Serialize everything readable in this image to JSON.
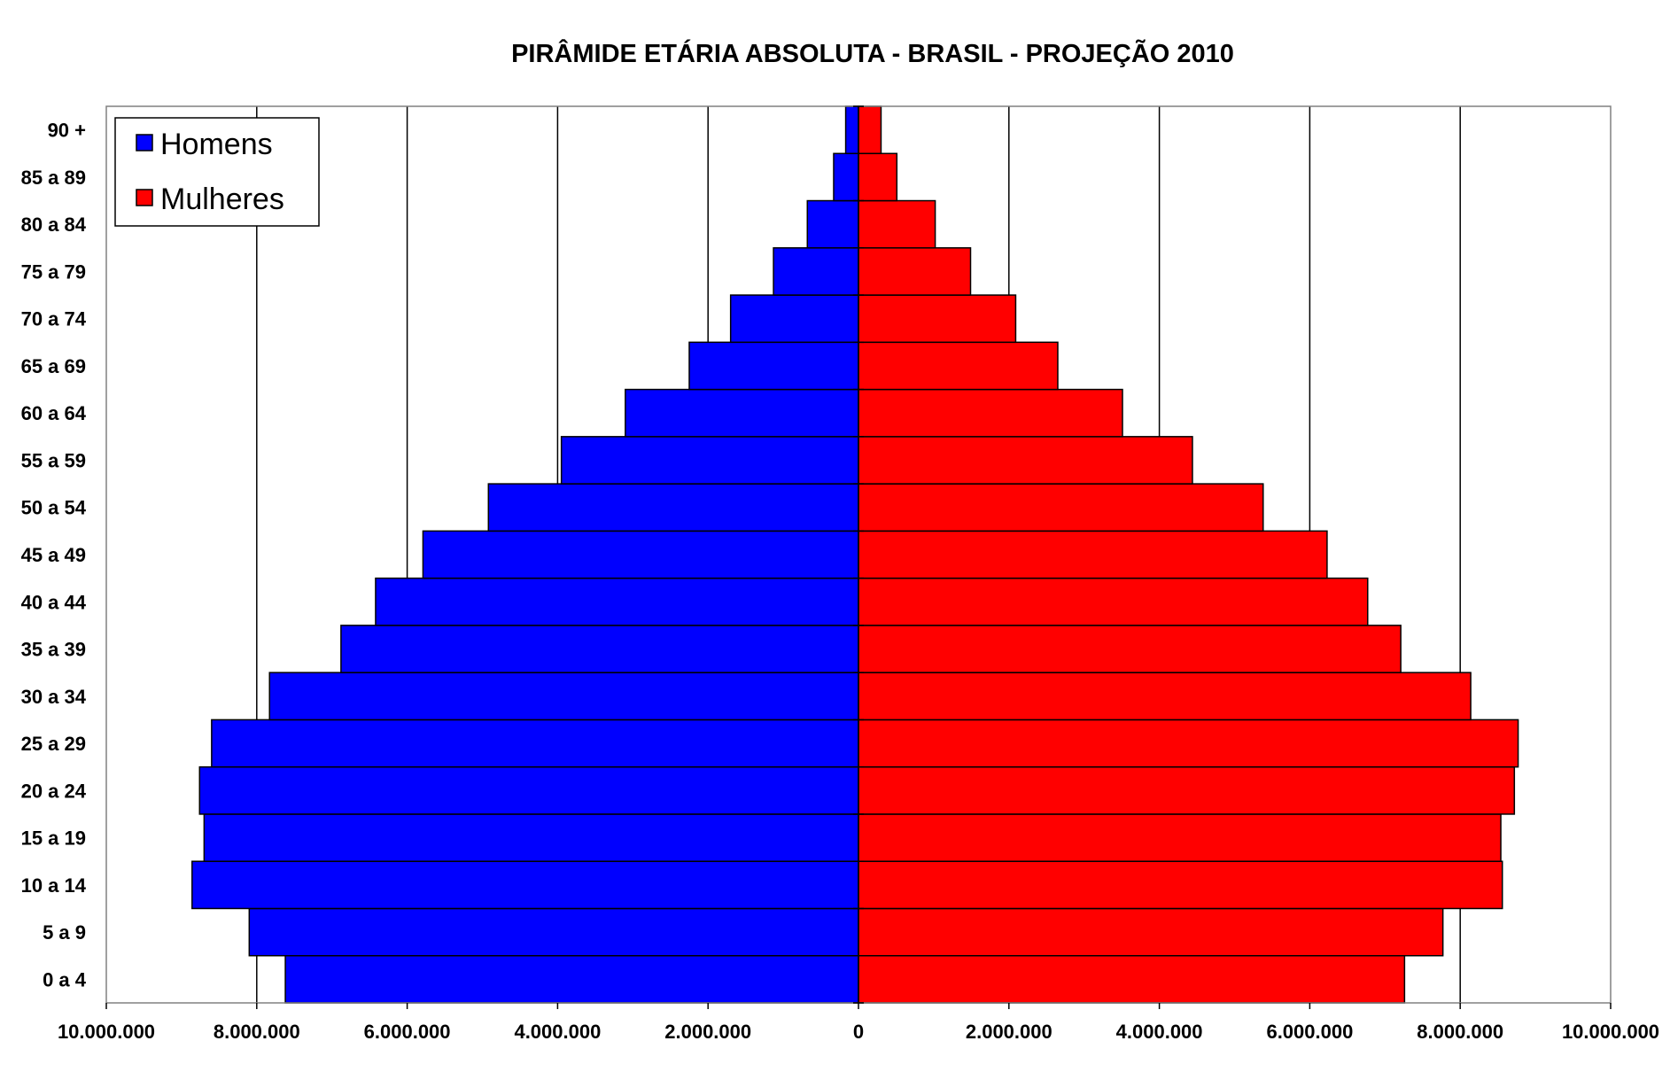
{
  "chart_data": {
    "type": "bar",
    "orientation": "horizontal",
    "subtype": "population-pyramid",
    "title": "PIRÂMIDE ETÁRIA ABSOLUTA - BRASIL - PROJEÇÃO 2010",
    "categories": [
      "0 a 4",
      "5 a 9",
      "10 a 14",
      "15 a 19",
      "20 a 24",
      "25 a 29",
      "30 a 34",
      "35 a 39",
      "40 a 44",
      "45 a 49",
      "50 a 54",
      "55 a 59",
      "60 a 64",
      "65 a 69",
      "70 a 74",
      "75 a 79",
      "80 a 84",
      "85 a 89",
      "90 +"
    ],
    "series": [
      {
        "name": "Homens",
        "color": "#0000FF",
        "values": [
          7620000,
          8100000,
          8860000,
          8700000,
          8760000,
          8600000,
          7830000,
          6880000,
          6420000,
          5790000,
          4920000,
          3950000,
          3100000,
          2250000,
          1700000,
          1130000,
          680000,
          330000,
          170000
        ]
      },
      {
        "name": "Mulheres",
        "color": "#FF0000",
        "values": [
          7260000,
          7770000,
          8560000,
          8540000,
          8720000,
          8770000,
          8140000,
          7210000,
          6770000,
          6230000,
          5380000,
          4440000,
          3510000,
          2650000,
          2090000,
          1490000,
          1020000,
          510000,
          300000
        ]
      }
    ],
    "xlim": [
      -10000000,
      10000000
    ],
    "xticks": [
      "10.000.000",
      "8.000.000",
      "6.000.000",
      "4.000.000",
      "2.000.000",
      "0",
      "2.000.000",
      "4.000.000",
      "6.000.000",
      "8.000.000",
      "10.000.000"
    ],
    "grid": "vertical",
    "legend": {
      "position": "top-left",
      "entries": [
        "Homens",
        "Mulheres"
      ]
    }
  }
}
